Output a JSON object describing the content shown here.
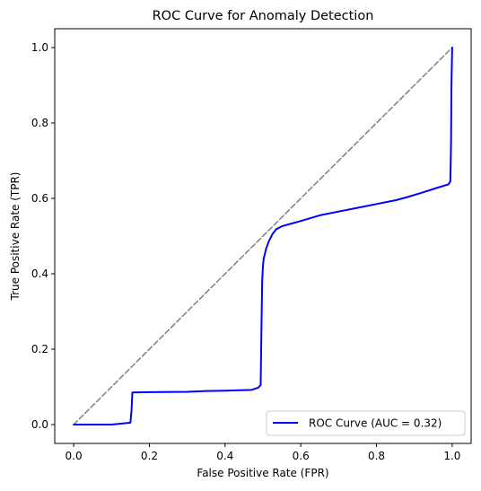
{
  "chart_data": {
    "type": "line",
    "title": "ROC Curve for Anomaly Detection",
    "xlabel": "False Positive Rate (FPR)",
    "ylabel": "True Positive Rate (TPR)",
    "xlim": [
      -0.05,
      1.05
    ],
    "ylim": [
      -0.05,
      1.05
    ],
    "xticks": [
      0.0,
      0.2,
      0.4,
      0.6,
      0.8,
      1.0
    ],
    "xtick_labels": [
      "0.0",
      "0.2",
      "0.4",
      "0.6",
      "0.8",
      "1.0"
    ],
    "yticks": [
      0.0,
      0.2,
      0.4,
      0.6,
      0.8,
      1.0
    ],
    "ytick_labels": [
      "0.0",
      "0.2",
      "0.4",
      "0.6",
      "0.8",
      "1.0"
    ],
    "grid": false,
    "legend_position": "bottom-right",
    "series": [
      {
        "name": "ROC Curve (AUC = 0.32)",
        "color": "#0000ff",
        "style": "solid",
        "x": [
          0.0,
          0.1,
          0.15,
          0.153,
          0.155,
          0.2,
          0.3,
          0.35,
          0.4,
          0.47,
          0.488,
          0.494,
          0.496,
          0.498,
          0.5,
          0.502,
          0.508,
          0.515,
          0.525,
          0.535,
          0.55,
          0.575,
          0.6,
          0.65,
          0.7,
          0.75,
          0.8,
          0.85,
          0.88,
          0.92,
          0.96,
          0.99,
          0.995,
          0.997,
          0.998,
          1.0
        ],
        "y": [
          0.0,
          0.0,
          0.005,
          0.04,
          0.085,
          0.086,
          0.087,
          0.089,
          0.09,
          0.092,
          0.098,
          0.105,
          0.25,
          0.38,
          0.42,
          0.44,
          0.465,
          0.485,
          0.505,
          0.518,
          0.526,
          0.533,
          0.54,
          0.555,
          0.565,
          0.575,
          0.585,
          0.595,
          0.603,
          0.615,
          0.628,
          0.637,
          0.645,
          0.75,
          0.9,
          1.0
        ]
      },
      {
        "name": "",
        "color": "#808080",
        "style": "dashed",
        "x": [
          0.0,
          1.0
        ],
        "y": [
          0.0,
          1.0
        ]
      }
    ]
  }
}
